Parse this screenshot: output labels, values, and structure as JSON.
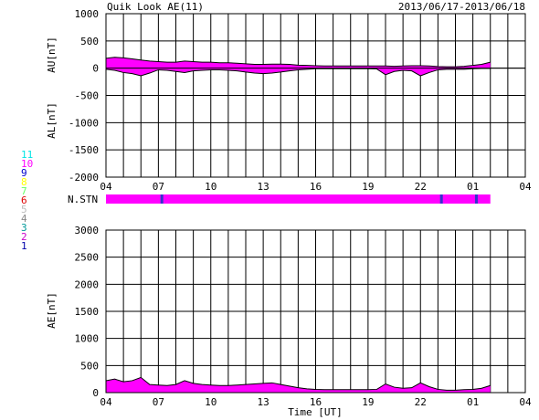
{
  "header": {
    "title": "Quik Look AE(11)",
    "date_range": "2013/06/17-2013/06/18"
  },
  "stations_legend": {
    "items": [
      {
        "label": "11",
        "color": "#00e5e5"
      },
      {
        "label": "10",
        "color": "#ff00ff"
      },
      {
        "label": "9",
        "color": "#0000cc"
      },
      {
        "label": "8",
        "color": "#ffff00"
      },
      {
        "label": "7",
        "color": "#66ff66"
      },
      {
        "label": "6",
        "color": "#dd0000"
      },
      {
        "label": "5",
        "color": "#bbbbbb"
      },
      {
        "label": "4",
        "color": "#888888"
      },
      {
        "label": "3",
        "color": "#009999"
      },
      {
        "label": "2",
        "color": "#cc00cc"
      },
      {
        "label": "1",
        "color": "#0000aa"
      }
    ]
  },
  "chart_data": [
    {
      "type": "area",
      "panel": "AU/AL",
      "ylabel_top": "AU[nT]",
      "ylabel_bottom": "AL[nT]",
      "ylim": [
        -2000,
        1000
      ],
      "yticks": [
        1000,
        500,
        0,
        -500,
        -1000,
        -1500,
        -2000
      ],
      "xlim": [
        4,
        28
      ],
      "xticks": [
        "04",
        "07",
        "10",
        "13",
        "16",
        "19",
        "22",
        "01",
        "04"
      ],
      "fill_color": "#ff00ff",
      "x": [
        4.0,
        4.5,
        5.0,
        5.5,
        6.0,
        6.5,
        7.0,
        7.5,
        8.0,
        8.5,
        9.0,
        9.5,
        10.0,
        10.5,
        11.0,
        11.5,
        12.0,
        12.5,
        13.0,
        13.5,
        14.0,
        14.5,
        15.0,
        15.5,
        16.0,
        16.5,
        17.0,
        17.5,
        18.0,
        18.5,
        19.0,
        19.5,
        20.0,
        20.5,
        21.0,
        21.5,
        22.0,
        22.5,
        23.0,
        23.5,
        24.0,
        24.5,
        25.0,
        25.5,
        26.0
      ],
      "au": [
        180,
        200,
        190,
        170,
        150,
        130,
        120,
        110,
        110,
        130,
        120,
        110,
        110,
        100,
        100,
        90,
        80,
        70,
        70,
        75,
        75,
        70,
        55,
        50,
        45,
        40,
        40,
        40,
        40,
        40,
        40,
        40,
        40,
        35,
        40,
        45,
        45,
        40,
        30,
        25,
        25,
        35,
        50,
        70,
        110
      ],
      "al": [
        -20,
        -40,
        -80,
        -100,
        -140,
        -90,
        -30,
        -40,
        -60,
        -80,
        -50,
        -40,
        -30,
        -30,
        -40,
        -50,
        -70,
        -90,
        -100,
        -90,
        -70,
        -50,
        -30,
        -20,
        -10,
        -10,
        -10,
        -10,
        -10,
        -10,
        -10,
        -15,
        -120,
        -60,
        -40,
        -50,
        -140,
        -80,
        -30,
        -20,
        -20,
        -20,
        -10,
        -5,
        -5
      ]
    },
    {
      "type": "station_bar",
      "label": "N.STN",
      "value": 10,
      "bar_color": "#ff00ff",
      "markers": [
        7.2,
        23.2,
        25.2
      ],
      "marker_color": "#3333cc"
    },
    {
      "type": "area",
      "panel": "AE",
      "ylabel": "AE[nT]",
      "xlabel": "Time [UT]",
      "ylim": [
        0,
        3000
      ],
      "yticks": [
        3000,
        2500,
        2000,
        1500,
        1000,
        500,
        0
      ],
      "xlim": [
        4,
        28
      ],
      "xticks": [
        "04",
        "07",
        "10",
        "13",
        "16",
        "19",
        "22",
        "01",
        "04"
      ],
      "fill_color": "#ff00ff",
      "x": [
        4.0,
        4.5,
        5.0,
        5.5,
        6.0,
        6.5,
        7.0,
        7.5,
        8.0,
        8.5,
        9.0,
        9.5,
        10.0,
        10.5,
        11.0,
        11.5,
        12.0,
        12.5,
        13.0,
        13.5,
        14.0,
        14.5,
        15.0,
        15.5,
        16.0,
        16.5,
        17.0,
        17.5,
        18.0,
        18.5,
        19.0,
        19.5,
        20.0,
        20.5,
        21.0,
        21.5,
        22.0,
        22.5,
        23.0,
        23.5,
        24.0,
        24.5,
        25.0,
        25.5,
        26.0
      ],
      "values": [
        220,
        250,
        200,
        220,
        280,
        150,
        140,
        130,
        150,
        220,
        170,
        150,
        140,
        130,
        130,
        140,
        150,
        160,
        170,
        180,
        150,
        120,
        90,
        70,
        60,
        55,
        55,
        55,
        55,
        55,
        55,
        60,
        160,
        100,
        80,
        90,
        180,
        110,
        60,
        45,
        45,
        55,
        60,
        80,
        130
      ]
    }
  ]
}
